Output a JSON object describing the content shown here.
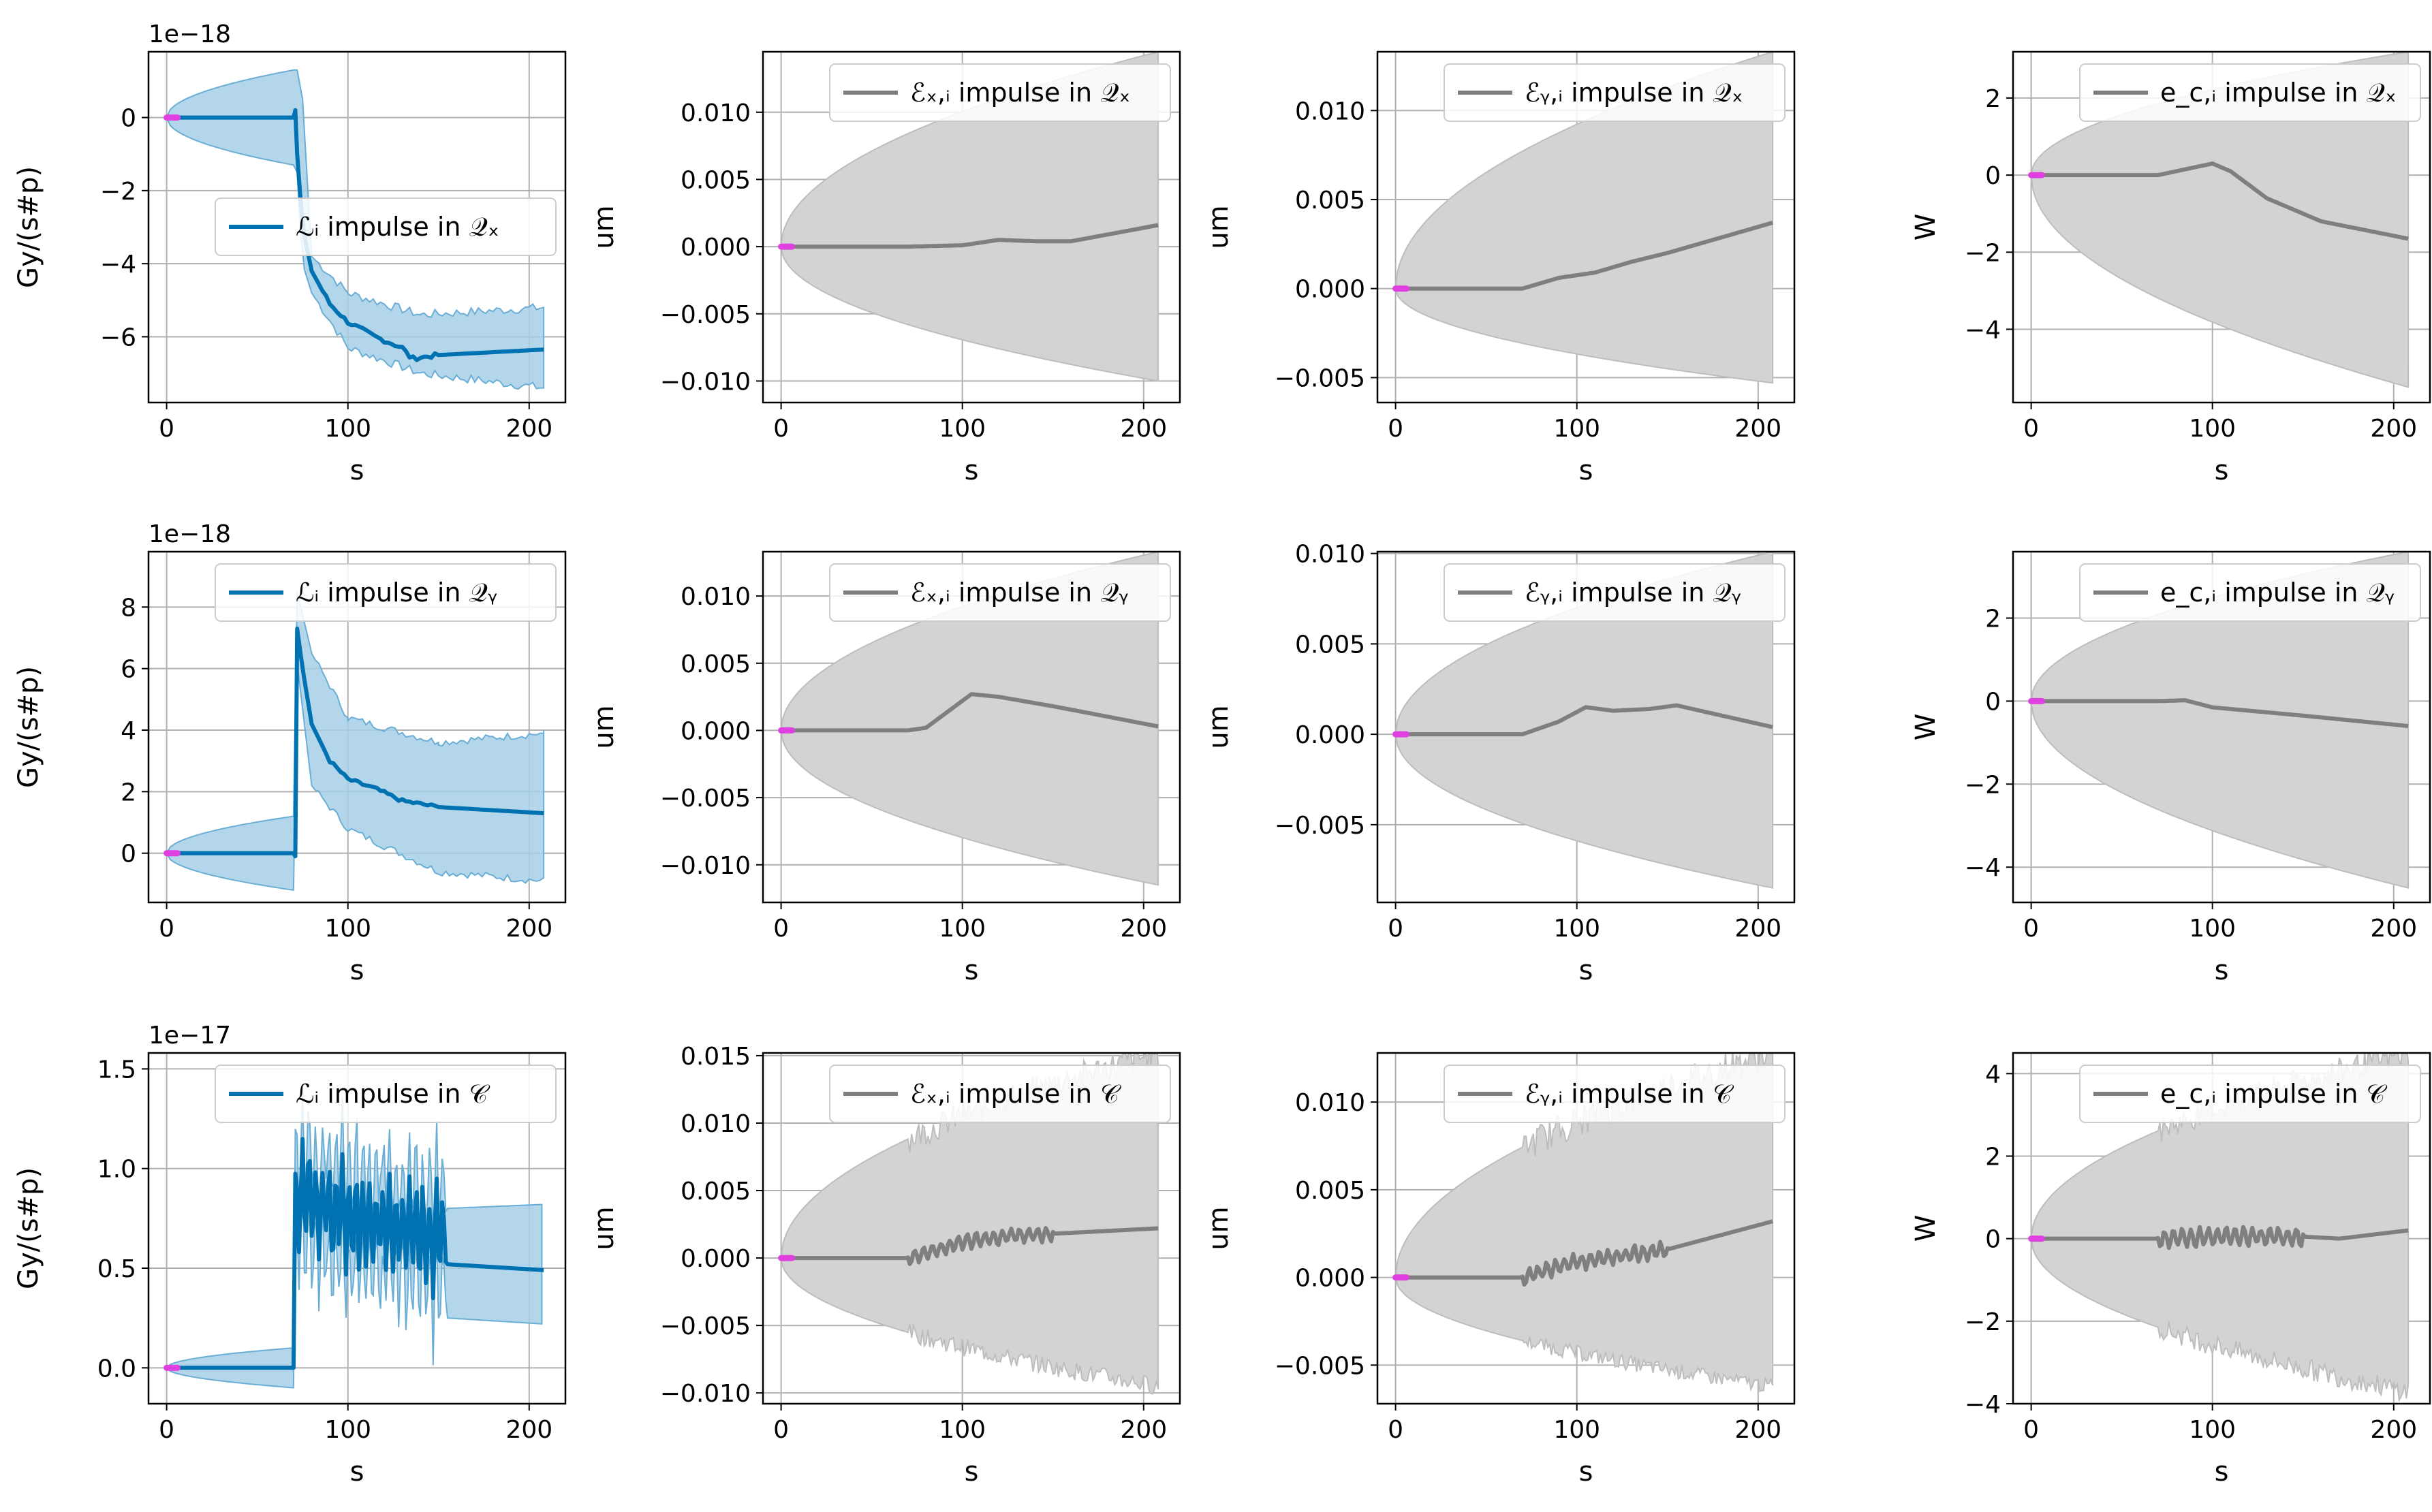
{
  "colors": {
    "blue": "#0072b2",
    "blue_band": "#a6cfe6",
    "gray": "#7f7f7f",
    "gray_band": "#d3d3d3",
    "magenta": "#e040e0",
    "grid": "#b0b0b0"
  },
  "chart_data": [
    {
      "type": "line",
      "xlabel": "s",
      "ylabel": "Gy/(s#p)",
      "offset_text": "1e−18",
      "legend": "ℒᵢ impulse in 𝒬ₓ",
      "legend_loc": "center-right",
      "color": "blue",
      "xlim": [
        -10,
        220
      ],
      "ylim": [
        -7.8,
        1.8
      ],
      "xticks": [
        0,
        100,
        200
      ],
      "xticklabels": [
        "0",
        "100",
        "200"
      ],
      "yticks": [
        0,
        -2,
        -4,
        -6
      ],
      "yticklabels": [
        "0",
        "−2",
        "−4",
        "−6"
      ],
      "shape": "drop",
      "pre": 0,
      "jump_to": 0.2,
      "curve": [
        [
          72,
          -1.0
        ],
        [
          75,
          -3.0
        ],
        [
          80,
          -4.2
        ],
        [
          90,
          -5.1
        ],
        [
          100,
          -5.6
        ],
        [
          115,
          -6.0
        ],
        [
          130,
          -6.3
        ],
        [
          135,
          -6.6
        ],
        [
          150,
          -6.5
        ],
        [
          208,
          -6.35
        ]
      ],
      "band_pre": 1.3,
      "band_curve": [
        [
          72,
          1.3
        ],
        [
          75,
          0.5
        ],
        [
          80,
          -3.8
        ],
        [
          100,
          -4.8
        ],
        [
          140,
          -5.4
        ],
        [
          208,
          -5.2
        ]
      ],
      "band_curve_low": [
        [
          72,
          -1.5
        ],
        [
          75,
          -4.0
        ],
        [
          80,
          -4.8
        ],
        [
          100,
          -6.3
        ],
        [
          140,
          -7.0
        ],
        [
          208,
          -7.4
        ]
      ]
    },
    {
      "type": "line",
      "xlabel": "s",
      "ylabel": "um",
      "legend": "ℰₓ,ᵢ impulse in 𝒬ₓ",
      "legend_loc": "top-right",
      "color": "gray",
      "xlim": [
        -10,
        220
      ],
      "ylim": [
        -0.0116,
        0.0145
      ],
      "xticks": [
        0,
        100,
        200
      ],
      "xticklabels": [
        "0",
        "100",
        "200"
      ],
      "yticks": [
        0.01,
        0.005,
        0,
        -0.005,
        -0.01
      ],
      "yticklabels": [
        "0.010",
        "0.005",
        "0.000",
        "−0.005",
        "−0.010"
      ],
      "shape": "grow",
      "band_max": 0.0145,
      "band_min": -0.01,
      "curve": [
        [
          0,
          0
        ],
        [
          70,
          0
        ],
        [
          100,
          0.0001
        ],
        [
          120,
          0.0005
        ],
        [
          140,
          0.0004
        ],
        [
          160,
          0.0004
        ],
        [
          208,
          0.0016
        ]
      ]
    },
    {
      "type": "line",
      "xlabel": "s",
      "ylabel": "um",
      "legend": "ℰᵧ,ᵢ impulse in 𝒬ₓ",
      "legend_loc": "top-right",
      "color": "gray",
      "xlim": [
        -10,
        220
      ],
      "ylim": [
        -0.0064,
        0.0133
      ],
      "xticks": [
        0,
        100,
        200
      ],
      "xticklabels": [
        "0",
        "100",
        "200"
      ],
      "yticks": [
        0.01,
        0.005,
        0,
        -0.005
      ],
      "yticklabels": [
        "0.010",
        "0.005",
        "0.000",
        "−0.005"
      ],
      "shape": "grow",
      "band_max": 0.0133,
      "band_min": -0.0053,
      "curve": [
        [
          0,
          0
        ],
        [
          70,
          0
        ],
        [
          90,
          0.0006
        ],
        [
          110,
          0.0009
        ],
        [
          130,
          0.0015
        ],
        [
          150,
          0.002
        ],
        [
          208,
          0.0037
        ]
      ]
    },
    {
      "type": "line",
      "xlabel": "s",
      "ylabel": "W",
      "legend": "e_c,ᵢ impulse in 𝒬ₓ",
      "legend_loc": "top-right",
      "color": "gray",
      "xlim": [
        -10,
        220
      ],
      "ylim": [
        -5.9,
        3.2
      ],
      "xticks": [
        0,
        100,
        200
      ],
      "xticklabels": [
        "0",
        "100",
        "200"
      ],
      "yticks": [
        2,
        0,
        -2,
        -4
      ],
      "yticklabels": [
        "2",
        "0",
        "−2",
        "−4"
      ],
      "shape": "grow",
      "band_max": 3.2,
      "band_min": -5.5,
      "curve": [
        [
          0,
          0
        ],
        [
          70,
          0
        ],
        [
          90,
          0.2
        ],
        [
          100,
          0.3
        ],
        [
          110,
          0.1
        ],
        [
          130,
          -0.6
        ],
        [
          160,
          -1.2
        ],
        [
          208,
          -1.65
        ]
      ]
    },
    {
      "type": "line",
      "xlabel": "s",
      "ylabel": "Gy/(s#p)",
      "offset_text": "1e−18",
      "legend": "ℒᵢ impulse in 𝒬ᵧ",
      "legend_loc": "top-right",
      "color": "blue",
      "xlim": [
        -10,
        220
      ],
      "ylim": [
        -1.6,
        9.8
      ],
      "xticks": [
        0,
        100,
        200
      ],
      "xticklabels": [
        "0",
        "100",
        "200"
      ],
      "yticks": [
        8,
        6,
        4,
        2,
        0
      ],
      "yticklabels": [
        "8",
        "6",
        "4",
        "2",
        "0"
      ],
      "shape": "spike",
      "pre": 0,
      "jump_to": -0.1,
      "curve": [
        [
          72,
          7.3
        ],
        [
          75,
          6.0
        ],
        [
          80,
          4.2
        ],
        [
          90,
          3.0
        ],
        [
          100,
          2.4
        ],
        [
          115,
          2.1
        ],
        [
          130,
          1.7
        ],
        [
          150,
          1.5
        ],
        [
          208,
          1.3
        ]
      ],
      "band_pre": 1.2,
      "band_curve": [
        [
          72,
          8.5
        ],
        [
          80,
          6.5
        ],
        [
          100,
          4.4
        ],
        [
          150,
          3.6
        ],
        [
          208,
          3.9
        ]
      ],
      "band_curve_low": [
        [
          72,
          6.2
        ],
        [
          80,
          2.2
        ],
        [
          100,
          0.8
        ],
        [
          150,
          -0.6
        ],
        [
          208,
          -0.9
        ]
      ]
    },
    {
      "type": "line",
      "xlabel": "s",
      "ylabel": "um",
      "legend": "ℰₓ,ᵢ impulse in 𝒬ᵧ",
      "legend_loc": "top-right",
      "color": "gray",
      "xlim": [
        -10,
        220
      ],
      "ylim": [
        -0.0128,
        0.0133
      ],
      "xticks": [
        0,
        100,
        200
      ],
      "xticklabels": [
        "0",
        "100",
        "200"
      ],
      "yticks": [
        0.01,
        0.005,
        0,
        -0.005,
        -0.01
      ],
      "yticklabels": [
        "0.010",
        "0.005",
        "0.000",
        "−0.005",
        "−0.010"
      ],
      "shape": "grow",
      "band_max": 0.0133,
      "band_min": -0.0115,
      "curve": [
        [
          0,
          0
        ],
        [
          70,
          0
        ],
        [
          80,
          0.0002
        ],
        [
          95,
          0.0017
        ],
        [
          105,
          0.0027
        ],
        [
          120,
          0.0025
        ],
        [
          150,
          0.0018
        ],
        [
          208,
          0.0003
        ]
      ]
    },
    {
      "type": "line",
      "xlabel": "s",
      "ylabel": "um",
      "legend": "ℰᵧ,ᵢ impulse in 𝒬ᵧ",
      "legend_loc": "top-right",
      "color": "gray",
      "xlim": [
        -10,
        220
      ],
      "ylim": [
        -0.0093,
        0.0101
      ],
      "xticks": [
        0,
        100,
        200
      ],
      "xticklabels": [
        "0",
        "100",
        "200"
      ],
      "yticks": [
        0.01,
        0.005,
        0,
        -0.005
      ],
      "yticklabels": [
        "0.010",
        "0.005",
        "0.000",
        "−0.005"
      ],
      "shape": "grow",
      "band_max": 0.0101,
      "band_min": -0.0085,
      "curve": [
        [
          0,
          0
        ],
        [
          70,
          0
        ],
        [
          90,
          0.0007
        ],
        [
          105,
          0.0015
        ],
        [
          120,
          0.0013
        ],
        [
          140,
          0.0014
        ],
        [
          155,
          0.0016
        ],
        [
          208,
          0.0004
        ]
      ]
    },
    {
      "type": "line",
      "xlabel": "s",
      "ylabel": "W",
      "legend": "e_c,ᵢ impulse in 𝒬ᵧ",
      "legend_loc": "top-right",
      "color": "gray",
      "xlim": [
        -10,
        220
      ],
      "ylim": [
        -4.85,
        3.6
      ],
      "xticks": [
        0,
        100,
        200
      ],
      "xticklabels": [
        "0",
        "100",
        "200"
      ],
      "yticks": [
        2,
        0,
        -2,
        -4
      ],
      "yticklabels": [
        "2",
        "0",
        "−2",
        "−4"
      ],
      "shape": "grow",
      "band_max": 3.6,
      "band_min": -4.5,
      "curve": [
        [
          0,
          0
        ],
        [
          70,
          0
        ],
        [
          85,
          0.02
        ],
        [
          100,
          -0.15
        ],
        [
          150,
          -0.35
        ],
        [
          208,
          -0.6
        ]
      ]
    },
    {
      "type": "line",
      "xlabel": "s",
      "ylabel": "Gy/(s#p)",
      "offset_text": "1e−17",
      "legend": "ℒᵢ impulse in 𝒞",
      "legend_loc": "top-right",
      "color": "blue",
      "xlim": [
        -10,
        220
      ],
      "ylim": [
        -0.18,
        1.58
      ],
      "xticks": [
        0,
        100,
        200
      ],
      "xticklabels": [
        "0",
        "100",
        "200"
      ],
      "yticks": [
        1.5,
        1.0,
        0.5,
        0.0
      ],
      "yticklabels": [
        "1.5",
        "1.0",
        "0.5",
        "0.0"
      ],
      "shape": "noisy",
      "pre": 0,
      "noisy_range": [
        70,
        155
      ],
      "noisy_center": 0.85,
      "noisy_amp": 0.3,
      "after": [
        [
          155,
          0.52
        ],
        [
          208,
          0.49
        ]
      ],
      "band_pre": 0.1,
      "band_after_hi": [
        [
          155,
          0.8
        ],
        [
          208,
          0.82
        ]
      ],
      "band_after_lo": [
        [
          155,
          0.25
        ],
        [
          208,
          0.22
        ]
      ]
    },
    {
      "type": "line",
      "xlabel": "s",
      "ylabel": "um",
      "legend": "ℰₓ,ᵢ impulse in 𝒞",
      "legend_loc": "top-right",
      "color": "gray",
      "xlim": [
        -10,
        220
      ],
      "ylim": [
        -0.0108,
        0.0152
      ],
      "xticks": [
        0,
        100,
        200
      ],
      "xticklabels": [
        "0",
        "100",
        "200"
      ],
      "yticks": [
        0.015,
        0.01,
        0.005,
        0,
        -0.005,
        -0.01
      ],
      "yticklabels": [
        "0.015",
        "0.010",
        "0.005",
        "0.000",
        "−0.005",
        "−0.010"
      ],
      "shape": "grow_noisy",
      "band_max": 0.0152,
      "band_min": -0.0095,
      "curve": [
        [
          0,
          0
        ],
        [
          70,
          0
        ],
        [
          100,
          0.0012
        ],
        [
          130,
          0.0017
        ],
        [
          150,
          0.0018
        ],
        [
          208,
          0.0022
        ]
      ],
      "noise_range": [
        70,
        150
      ],
      "noise_amp": 0.0006
    },
    {
      "type": "line",
      "xlabel": "s",
      "ylabel": "um",
      "legend": "ℰᵧ,ᵢ impulse in 𝒞",
      "legend_loc": "top-right",
      "color": "gray",
      "xlim": [
        -10,
        220
      ],
      "ylim": [
        -0.0072,
        0.0128
      ],
      "xticks": [
        0,
        100,
        200
      ],
      "xticklabels": [
        "0",
        "100",
        "200"
      ],
      "yticks": [
        0.01,
        0.005,
        0,
        -0.005
      ],
      "yticklabels": [
        "0.010",
        "0.005",
        "0.000",
        "−0.005"
      ],
      "shape": "grow_noisy",
      "band_max": 0.0128,
      "band_min": -0.0062,
      "curve": [
        [
          0,
          0
        ],
        [
          70,
          0
        ],
        [
          100,
          0.0009
        ],
        [
          130,
          0.0013
        ],
        [
          150,
          0.0016
        ],
        [
          208,
          0.0032
        ]
      ],
      "noise_range": [
        70,
        150
      ],
      "noise_amp": 0.0005
    },
    {
      "type": "line",
      "xlabel": "s",
      "ylabel": "W",
      "legend": "e_c,ᵢ impulse in 𝒞",
      "legend_loc": "top-right",
      "color": "gray",
      "xlim": [
        -10,
        220
      ],
      "ylim": [
        -4.0,
        4.5
      ],
      "xticks": [
        0,
        100,
        200
      ],
      "xticklabels": [
        "0",
        "100",
        "200"
      ],
      "yticks": [
        4,
        2,
        0,
        -2,
        -4
      ],
      "yticklabels": [
        "4",
        "2",
        "0",
        "−2",
        "−4"
      ],
      "shape": "grow_noisy",
      "band_max": 4.5,
      "band_min": -3.7,
      "curve": [
        [
          0,
          0
        ],
        [
          70,
          0
        ],
        [
          100,
          0.05
        ],
        [
          150,
          0.05
        ],
        [
          170,
          0.0
        ],
        [
          208,
          0.2
        ]
      ],
      "noise_range": [
        70,
        150
      ],
      "noise_amp": 0.25
    }
  ]
}
